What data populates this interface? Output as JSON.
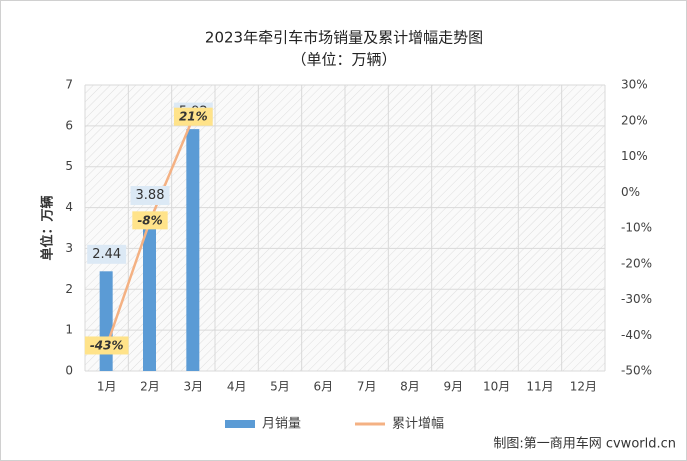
{
  "chart_data": {
    "type": "bar-line",
    "title": "2023年牵引车市场销量及累计增幅走势图",
    "subtitle": "（单位：万辆）",
    "y_label": "单位：万辆",
    "source": "制图:第一商用车网 cvworld.cn",
    "categories": [
      "1月",
      "2月",
      "3月",
      "4月",
      "5月",
      "6月",
      "7月",
      "8月",
      "9月",
      "10月",
      "11月",
      "12月"
    ],
    "series": [
      {
        "name": "月销量",
        "type": "bar",
        "color": "#5b9bd5",
        "values": [
          2.44,
          3.88,
          5.92,
          null,
          null,
          null,
          null,
          null,
          null,
          null,
          null,
          null
        ]
      },
      {
        "name": "累计增幅",
        "type": "line",
        "axis": "y2",
        "color": "#f4b183",
        "values": [
          -43,
          -8,
          21,
          null,
          null,
          null,
          null,
          null,
          null,
          null,
          null,
          null
        ],
        "value_labels": [
          "-43%",
          "-8%",
          "21%",
          null,
          null,
          null,
          null,
          null,
          null,
          null,
          null,
          null
        ]
      }
    ],
    "ylim": [
      0,
      7
    ],
    "yticks": [
      0,
      1,
      2,
      3,
      4,
      5,
      6,
      7
    ],
    "y2lim": [
      -50,
      30
    ],
    "y2ticks": [
      {
        "value": -50,
        "label": "-50%"
      },
      {
        "value": -40,
        "label": "-40%"
      },
      {
        "value": -30,
        "label": "-30%"
      },
      {
        "value": -20,
        "label": "-20%"
      },
      {
        "value": -10,
        "label": "-10%"
      },
      {
        "value": 0,
        "label": "0%"
      },
      {
        "value": 10,
        "label": "10%"
      },
      {
        "value": 20,
        "label": "20%"
      },
      {
        "value": 30,
        "label": "30%"
      }
    ],
    "grid": true,
    "legend": "bottom"
  }
}
